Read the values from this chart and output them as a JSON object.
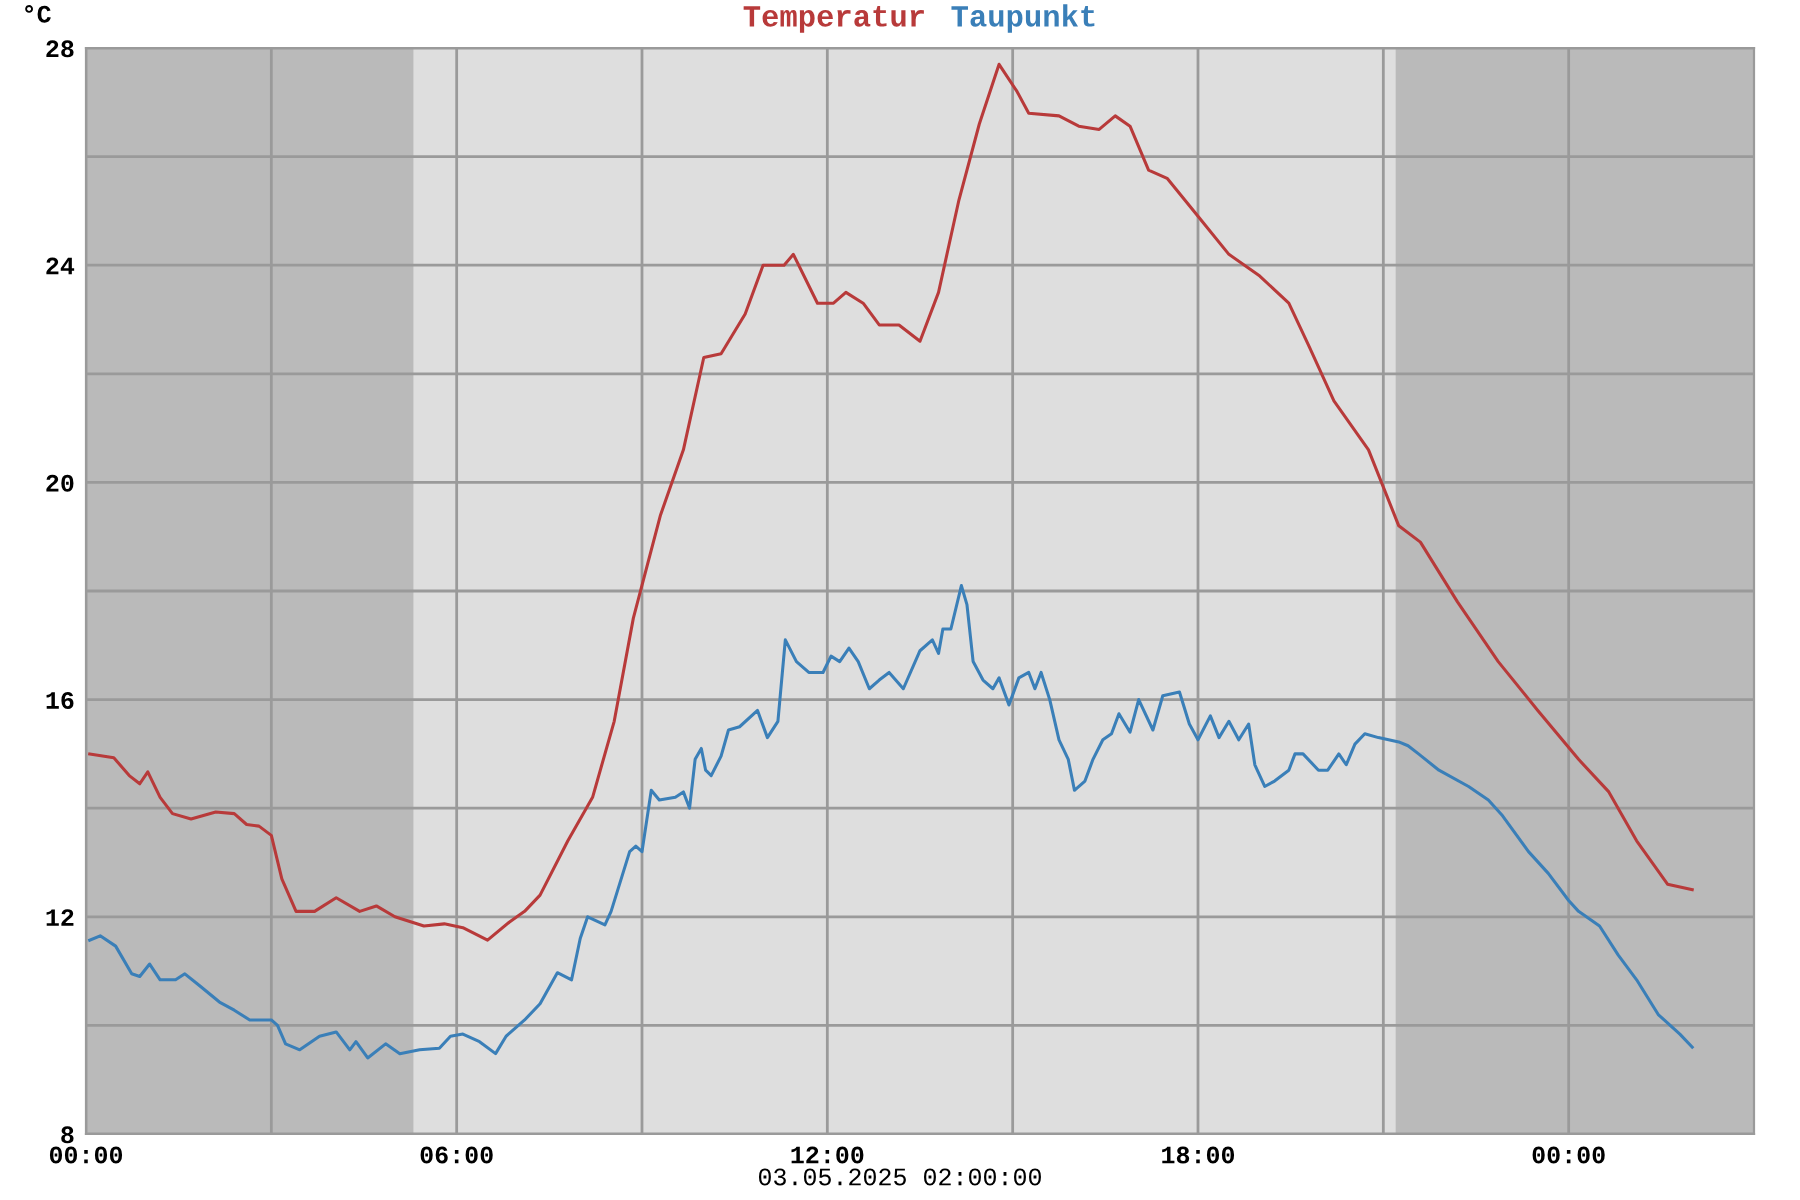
{
  "chart_data": {
    "type": "line",
    "ylabel": "°C",
    "annotations": [
      "03.05.2025 02:00:00"
    ],
    "xlim": [
      0,
      27
    ],
    "ylim": [
      8,
      28
    ],
    "xticks": [
      {
        "value": 0,
        "label": "00:00"
      },
      {
        "value": 3,
        "label": null
      },
      {
        "value": 6,
        "label": "06:00"
      },
      {
        "value": 9,
        "label": null
      },
      {
        "value": 12,
        "label": "12:00"
      },
      {
        "value": 15,
        "label": null
      },
      {
        "value": 18,
        "label": "18:00"
      },
      {
        "value": 21,
        "label": null
      },
      {
        "value": 24,
        "label": "00:00"
      }
    ],
    "yticks": [
      8,
      {
        "value": 10,
        "label": null
      },
      12,
      {
        "value": 14,
        "label": null
      },
      16,
      {
        "value": 18,
        "label": null
      },
      20,
      {
        "value": 22,
        "label": null
      },
      24,
      {
        "value": 26,
        "label": null
      },
      28
    ],
    "grid": true,
    "legend": "top",
    "marker": "none",
    "line_style": "solid",
    "bands": [
      {
        "axis": "x",
        "from": 0,
        "to": 5.3,
        "color": "#bababa"
      },
      {
        "axis": "x",
        "from": 21.2,
        "to": 27,
        "color": "#bababa"
      }
    ],
    "series": [
      {
        "name": "Temperatur",
        "color": "#b83a3a",
        "x": [
          0.06,
          0.45,
          0.7,
          0.87,
          1.0,
          1.2,
          1.4,
          1.7,
          2.1,
          2.4,
          2.6,
          2.8,
          3.0,
          3.17,
          3.4,
          3.7,
          4.05,
          4.43,
          4.7,
          5.0,
          5.47,
          5.8,
          6.1,
          6.5,
          6.85,
          7.1,
          7.35,
          7.8,
          8.2,
          8.55,
          8.86,
          9.3,
          9.67,
          10.0,
          10.28,
          10.67,
          10.96,
          11.3,
          11.45,
          11.84,
          12.1,
          12.3,
          12.58,
          12.84,
          13.16,
          13.5,
          13.8,
          14.13,
          14.46,
          14.78,
          15.07,
          15.26,
          15.75,
          16.07,
          16.4,
          16.66,
          16.9,
          17.2,
          17.5,
          18.0,
          18.5,
          19.0,
          19.47,
          19.8,
          20.2,
          20.76,
          21.25,
          21.6,
          22.2,
          22.86,
          23.5,
          24.16,
          24.65,
          25.1,
          25.6,
          26.0
        ],
        "values": [
          15.0,
          14.93,
          14.6,
          14.45,
          14.67,
          14.2,
          13.9,
          13.8,
          13.93,
          13.9,
          13.7,
          13.67,
          13.5,
          12.7,
          12.1,
          12.1,
          12.35,
          12.1,
          12.2,
          12.0,
          11.83,
          11.87,
          11.8,
          11.57,
          11.9,
          12.1,
          12.4,
          13.4,
          14.2,
          15.6,
          17.5,
          19.4,
          20.6,
          22.3,
          22.37,
          23.1,
          24.0,
          24.0,
          24.2,
          23.3,
          23.3,
          23.5,
          23.3,
          22.9,
          22.9,
          22.6,
          23.5,
          25.2,
          26.6,
          27.7,
          27.2,
          26.8,
          26.75,
          26.56,
          26.5,
          26.75,
          26.56,
          25.75,
          25.6,
          24.9,
          24.2,
          23.8,
          23.3,
          22.5,
          21.5,
          20.6,
          19.2,
          18.9,
          17.8,
          16.7,
          15.8,
          14.9,
          14.3,
          13.4,
          12.6,
          12.5
        ]
      },
      {
        "name": "Taupunkt",
        "color": "#3a7fb8",
        "x": [
          0.06,
          0.23,
          0.48,
          0.74,
          0.87,
          1.03,
          1.2,
          1.45,
          1.6,
          1.84,
          2.16,
          2.4,
          2.65,
          3.0,
          3.1,
          3.23,
          3.46,
          3.78,
          4.05,
          4.27,
          4.37,
          4.56,
          4.85,
          5.08,
          5.4,
          5.72,
          5.9,
          6.1,
          6.37,
          6.63,
          6.8,
          7.1,
          7.35,
          7.63,
          7.86,
          8.0,
          8.12,
          8.4,
          8.5,
          8.8,
          8.9,
          9.0,
          9.15,
          9.28,
          9.54,
          9.67,
          9.77,
          9.86,
          9.96,
          10.03,
          10.12,
          10.28,
          10.4,
          10.58,
          10.87,
          11.03,
          11.2,
          11.32,
          11.5,
          11.7,
          11.93,
          12.06,
          12.2,
          12.35,
          12.5,
          12.68,
          12.84,
          13.0,
          13.23,
          13.5,
          13.7,
          13.8,
          13.87,
          14.0,
          14.17,
          14.26,
          14.36,
          14.52,
          14.68,
          14.78,
          14.94,
          15.1,
          15.26,
          15.36,
          15.46,
          15.6,
          15.75,
          15.9,
          16.0,
          16.17,
          16.3,
          16.46,
          16.6,
          16.72,
          16.9,
          17.04,
          17.27,
          17.43,
          17.7,
          17.86,
          18.0,
          18.2,
          18.34,
          18.5,
          18.66,
          18.82,
          18.92,
          19.08,
          19.24,
          19.47,
          19.57,
          19.7,
          19.95,
          20.1,
          20.28,
          20.4,
          20.54,
          20.7,
          20.92,
          21.25,
          21.4,
          21.57,
          21.9,
          22.38,
          22.7,
          22.93,
          23.35,
          23.67,
          24.0,
          24.16,
          24.5,
          24.8,
          25.1,
          25.45,
          25.8,
          26.0
        ],
        "values": [
          11.57,
          11.65,
          11.46,
          10.95,
          10.9,
          11.13,
          10.84,
          10.84,
          10.95,
          10.73,
          10.43,
          10.28,
          10.1,
          10.1,
          10.0,
          9.66,
          9.55,
          9.8,
          9.88,
          9.55,
          9.7,
          9.4,
          9.66,
          9.48,
          9.55,
          9.58,
          9.8,
          9.84,
          9.7,
          9.48,
          9.8,
          10.1,
          10.4,
          10.97,
          10.84,
          11.6,
          12.0,
          11.85,
          12.1,
          13.2,
          13.3,
          13.2,
          14.33,
          14.15,
          14.2,
          14.3,
          14.0,
          14.9,
          15.1,
          14.7,
          14.6,
          14.96,
          15.44,
          15.5,
          15.8,
          15.3,
          15.6,
          17.1,
          16.7,
          16.5,
          16.5,
          16.8,
          16.7,
          16.95,
          16.7,
          16.2,
          16.36,
          16.5,
          16.2,
          16.9,
          17.1,
          16.85,
          17.3,
          17.3,
          18.1,
          17.75,
          16.7,
          16.36,
          16.2,
          16.4,
          15.9,
          16.4,
          16.5,
          16.2,
          16.5,
          16.0,
          15.26,
          14.9,
          14.33,
          14.5,
          14.9,
          15.26,
          15.37,
          15.74,
          15.4,
          16.0,
          15.44,
          16.07,
          16.14,
          15.55,
          15.26,
          15.7,
          15.3,
          15.6,
          15.26,
          15.55,
          14.8,
          14.4,
          14.5,
          14.7,
          15.0,
          15.0,
          14.7,
          14.7,
          15.0,
          14.8,
          15.18,
          15.37,
          15.3,
          15.22,
          15.15,
          15.0,
          14.7,
          14.4,
          14.15,
          13.86,
          13.2,
          12.8,
          12.3,
          12.1,
          11.83,
          11.3,
          10.84,
          10.2,
          9.84,
          9.6
        ]
      }
    ]
  }
}
